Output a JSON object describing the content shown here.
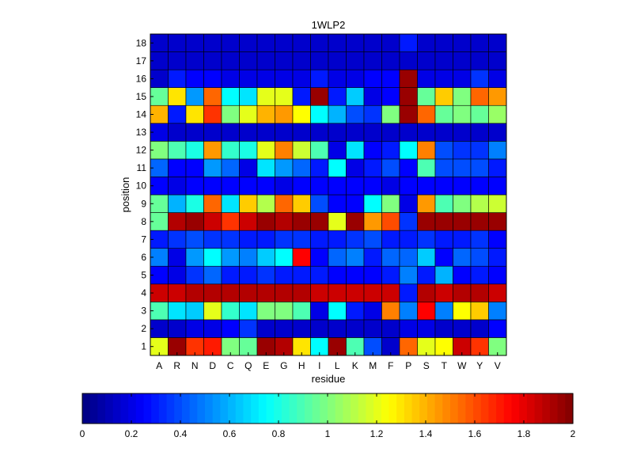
{
  "chart_data": {
    "type": "heatmap",
    "title": "1WLP2",
    "xlabel": "residue",
    "ylabel": "position",
    "x_categories": [
      "A",
      "R",
      "N",
      "D",
      "C",
      "Q",
      "E",
      "G",
      "H",
      "I",
      "L",
      "K",
      "M",
      "F",
      "P",
      "S",
      "T",
      "W",
      "Y",
      "V"
    ],
    "y_categories": [
      "1",
      "2",
      "3",
      "4",
      "5",
      "6",
      "7",
      "8",
      "9",
      "10",
      "11",
      "12",
      "13",
      "14",
      "15",
      "16",
      "17",
      "18"
    ],
    "colormap": "jet",
    "clim": [
      0,
      2
    ],
    "colorbar": {
      "location": "bottom",
      "ticks": [
        "0",
        "0.2",
        "0.4",
        "0.6",
        "0.8",
        "1",
        "1.2",
        "1.4",
        "1.6",
        "1.8",
        "2"
      ]
    },
    "grid": true,
    "values": [
      [
        1.2,
        1.95,
        1.65,
        1.7,
        1.0,
        0.95,
        1.95,
        1.9,
        1.3,
        0.75,
        1.95,
        0.9,
        0.4,
        0.15,
        1.55,
        1.2,
        1.25,
        1.85,
        1.65,
        1.0
      ],
      [
        0.15,
        0.15,
        0.2,
        0.2,
        0.25,
        0.35,
        0.15,
        0.15,
        0.15,
        0.15,
        0.15,
        0.15,
        0.15,
        0.15,
        0.2,
        0.2,
        0.15,
        0.15,
        0.15,
        0.25
      ],
      [
        0.9,
        0.7,
        0.65,
        1.2,
        0.85,
        0.7,
        1.0,
        1.0,
        0.9,
        0.2,
        0.75,
        0.3,
        0.2,
        1.5,
        0.5,
        1.75,
        0.5,
        1.25,
        1.35,
        0.5
      ],
      [
        1.85,
        1.85,
        1.9,
        1.9,
        1.9,
        1.9,
        1.9,
        1.9,
        1.9,
        1.85,
        1.85,
        1.85,
        1.85,
        1.85,
        0.3,
        1.9,
        1.85,
        1.9,
        1.9,
        1.85
      ],
      [
        0.25,
        0.2,
        0.35,
        0.45,
        0.3,
        0.3,
        0.35,
        0.3,
        0.3,
        0.3,
        0.25,
        0.25,
        0.25,
        0.3,
        0.5,
        0.3,
        0.6,
        0.25,
        0.3,
        0.25
      ],
      [
        0.5,
        0.2,
        0.55,
        0.75,
        0.55,
        0.5,
        0.65,
        0.75,
        1.75,
        0.25,
        0.45,
        0.5,
        0.3,
        0.45,
        0.45,
        0.65,
        0.25,
        0.45,
        0.4,
        0.3
      ],
      [
        0.3,
        0.35,
        0.4,
        0.35,
        0.35,
        0.3,
        0.3,
        0.35,
        0.35,
        0.3,
        0.3,
        0.35,
        0.4,
        0.3,
        0.3,
        0.35,
        0.3,
        0.3,
        0.35,
        0.25
      ],
      [
        0.95,
        1.9,
        1.95,
        1.85,
        1.65,
        1.85,
        1.95,
        1.9,
        1.95,
        1.95,
        1.2,
        1.95,
        1.45,
        1.6,
        0.35,
        1.95,
        1.95,
        1.95,
        1.95,
        1.95
      ],
      [
        0.95,
        0.6,
        0.8,
        1.55,
        0.7,
        1.35,
        1.1,
        1.55,
        1.35,
        0.4,
        0.25,
        0.25,
        0.75,
        1.0,
        0.2,
        1.45,
        0.9,
        1.0,
        1.1,
        1.15
      ],
      [
        0.25,
        0.2,
        0.25,
        0.25,
        0.25,
        0.25,
        0.25,
        0.2,
        0.25,
        0.25,
        0.25,
        0.25,
        0.25,
        0.2,
        0.25,
        0.25,
        0.25,
        0.25,
        0.25,
        0.25
      ],
      [
        0.45,
        0.25,
        0.25,
        0.55,
        0.45,
        0.2,
        0.7,
        0.55,
        0.45,
        0.3,
        0.75,
        0.2,
        0.3,
        0.4,
        0.25,
        0.9,
        0.4,
        0.4,
        0.4,
        0.3
      ],
      [
        1.0,
        0.9,
        0.8,
        1.45,
        0.85,
        0.8,
        1.2,
        1.5,
        1.15,
        0.9,
        0.2,
        0.7,
        0.25,
        0.3,
        0.75,
        1.5,
        0.4,
        0.35,
        0.35,
        0.5
      ],
      [
        0.2,
        0.15,
        0.15,
        0.15,
        0.15,
        0.15,
        0.15,
        0.15,
        0.15,
        0.15,
        0.15,
        0.15,
        0.15,
        0.15,
        0.15,
        0.15,
        0.15,
        0.15,
        0.15,
        0.15
      ],
      [
        1.4,
        0.3,
        1.3,
        1.65,
        1.0,
        1.2,
        1.4,
        1.45,
        1.25,
        0.75,
        0.6,
        0.4,
        0.35,
        1.0,
        1.95,
        1.55,
        0.95,
        1.0,
        0.95,
        1.05
      ],
      [
        0.95,
        1.3,
        0.55,
        1.55,
        0.75,
        0.7,
        1.2,
        1.2,
        0.3,
        1.95,
        0.3,
        0.65,
        0.2,
        0.25,
        1.95,
        0.95,
        1.35,
        1.0,
        1.55,
        1.45
      ],
      [
        0.15,
        0.3,
        0.25,
        0.25,
        0.2,
        0.2,
        0.2,
        0.2,
        0.2,
        0.3,
        0.2,
        0.2,
        0.25,
        0.25,
        1.95,
        0.2,
        0.2,
        0.2,
        0.35,
        0.2
      ],
      [
        0.15,
        0.15,
        0.15,
        0.15,
        0.15,
        0.15,
        0.15,
        0.15,
        0.15,
        0.15,
        0.15,
        0.15,
        0.15,
        0.15,
        0.15,
        0.15,
        0.15,
        0.15,
        0.15,
        0.15
      ],
      [
        0.15,
        0.15,
        0.15,
        0.15,
        0.15,
        0.15,
        0.15,
        0.15,
        0.15,
        0.15,
        0.15,
        0.15,
        0.15,
        0.15,
        0.3,
        0.15,
        0.15,
        0.15,
        0.15,
        0.15
      ]
    ]
  }
}
